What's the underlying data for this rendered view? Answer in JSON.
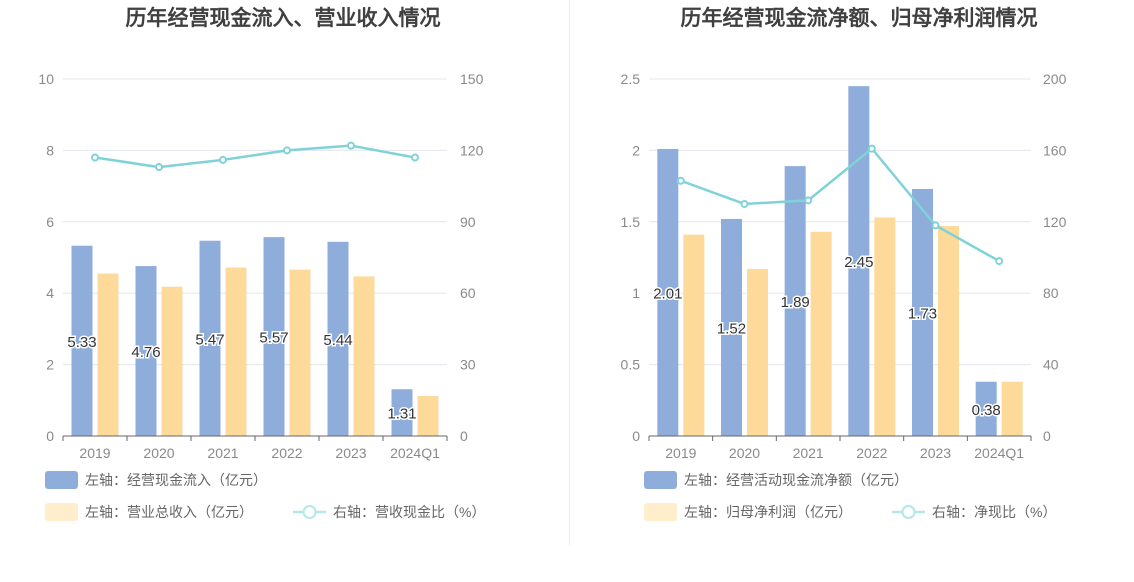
{
  "chart_data": [
    {
      "type": "bar",
      "title": "历年经营现金流入、营业收入情况",
      "categories": [
        "2019",
        "2020",
        "2021",
        "2022",
        "2023",
        "2024Q1"
      ],
      "left_axis": {
        "ylim": [
          0,
          10
        ],
        "ticks": [
          "0",
          "2",
          "4",
          "6",
          "8",
          "10"
        ]
      },
      "right_axis": {
        "ylim": [
          0,
          150
        ],
        "ticks": [
          "0",
          "30",
          "60",
          "90",
          "120",
          "150"
        ]
      },
      "series": [
        {
          "name": "左轴：经营现金流入（亿元）",
          "kind": "bar",
          "axis": "left",
          "color": "#8eadda",
          "values": [
            5.33,
            4.76,
            5.47,
            5.57,
            5.44,
            1.31
          ],
          "labels": [
            "5.33",
            "4.76",
            "5.47",
            "5.57",
            "5.44",
            "1.31"
          ]
        },
        {
          "name": "左轴：营业总收入（亿元）",
          "kind": "bar",
          "axis": "left",
          "color": "#fdd99a",
          "values": [
            4.55,
            4.18,
            4.72,
            4.66,
            4.47,
            1.12
          ]
        },
        {
          "name": "右轴：营收现金比（%）",
          "kind": "line",
          "axis": "right",
          "color": "#7fd3d8",
          "values": [
            117,
            113,
            116,
            120,
            122,
            117
          ]
        }
      ],
      "grid": true,
      "legend_position": "bottom"
    },
    {
      "type": "bar",
      "title": "历年经营现金流净额、归母净利润情况",
      "categories": [
        "2019",
        "2020",
        "2021",
        "2022",
        "2023",
        "2024Q1"
      ],
      "left_axis": {
        "ylim": [
          0,
          2.5
        ],
        "ticks": [
          "0",
          "0.5",
          "1",
          "1.5",
          "2",
          "2.5"
        ]
      },
      "right_axis": {
        "ylim": [
          0,
          200
        ],
        "ticks": [
          "0",
          "40",
          "80",
          "120",
          "160",
          "200"
        ]
      },
      "series": [
        {
          "name": "左轴：经营活动现金流净额（亿元）",
          "kind": "bar",
          "axis": "left",
          "color": "#8eadda",
          "values": [
            2.01,
            1.52,
            1.89,
            2.45,
            1.73,
            0.38
          ],
          "labels": [
            "2.01",
            "1.52",
            "1.89",
            "2.45",
            "1.73",
            "0.38"
          ]
        },
        {
          "name": "左轴：归母净利润（亿元）",
          "kind": "bar",
          "axis": "left",
          "color": "#fdd99a",
          "values": [
            1.41,
            1.17,
            1.43,
            1.53,
            1.47,
            0.38
          ]
        },
        {
          "name": "右轴：净现比（%）",
          "kind": "line",
          "axis": "right",
          "color": "#7fd3d8",
          "values": [
            143,
            130,
            132,
            161,
            118,
            98
          ]
        }
      ],
      "grid": true,
      "legend_position": "bottom"
    }
  ]
}
